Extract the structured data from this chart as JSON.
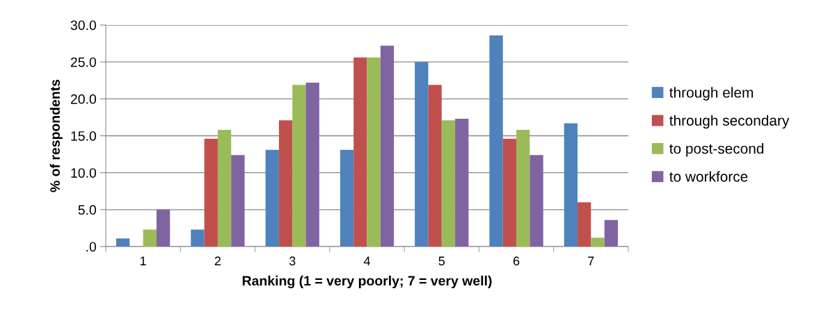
{
  "chart_data": {
    "type": "bar",
    "xlabel": "Ranking (1 = very poorly; 7 = very well)",
    "ylabel": "% of respondents",
    "categories": [
      "1",
      "2",
      "3",
      "4",
      "5",
      "6",
      "7"
    ],
    "series": [
      {
        "name": "through elem",
        "color": "#4f81bd",
        "values": [
          1.1,
          2.3,
          13.1,
          13.1,
          25.0,
          28.6,
          16.7
        ]
      },
      {
        "name": "through secondary",
        "color": "#c0504d",
        "values": [
          0.0,
          14.6,
          17.1,
          25.6,
          21.9,
          14.6,
          6.0
        ]
      },
      {
        "name": "to post-second",
        "color": "#9bbb59",
        "values": [
          2.3,
          15.8,
          21.9,
          25.6,
          17.1,
          15.8,
          1.2
        ]
      },
      {
        "name": "to workforce",
        "color": "#8064a2",
        "values": [
          5.0,
          12.4,
          22.2,
          27.2,
          17.3,
          12.4,
          3.6
        ]
      }
    ],
    "ylim": [
      0,
      30
    ],
    "yticks": [
      {
        "value": 0,
        "label": ".0"
      },
      {
        "value": 5,
        "label": "5.0"
      },
      {
        "value": 10,
        "label": "10.0"
      },
      {
        "value": 15,
        "label": "15.0"
      },
      {
        "value": 20,
        "label": "20.0"
      },
      {
        "value": 25,
        "label": "25.0"
      },
      {
        "value": 30,
        "label": "30.0"
      }
    ],
    "grid": "y",
    "legend": "right"
  }
}
